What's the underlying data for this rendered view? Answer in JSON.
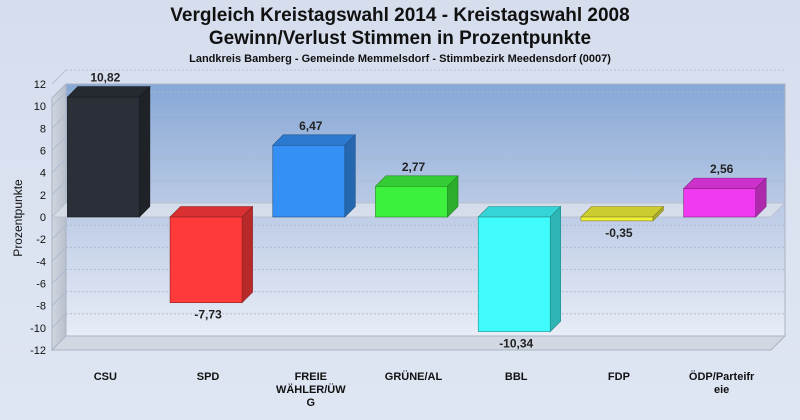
{
  "chart_data": {
    "type": "bar",
    "title": "Vergleich Kreistagswahl 2014 - Kreistagswahl 2008",
    "title2": "Gewinn/Verlust Stimmen in Prozentpunkte",
    "subtitle": "Landkreis Bamberg - Gemeinde Memmelsdorf - Stimmbezirk Meedensdorf (0007)",
    "ylabel": "Prozentpunkte",
    "xlabel": "",
    "ylim": [
      -12,
      12
    ],
    "yticks": [
      "12",
      "10",
      "8",
      "6",
      "4",
      "2",
      "0",
      "-2",
      "-4",
      "-6",
      "-8",
      "-10",
      "-12"
    ],
    "grid": true,
    "categories": [
      "CSU",
      "SPD",
      "FREIE WÄHLER/ÜWG",
      "GRÜNE/AL",
      "BBL",
      "FDP",
      "ÖDP/Parteifreie"
    ],
    "category_lines": [
      [
        "CSU"
      ],
      [
        "SPD"
      ],
      [
        "FREIE",
        "WÄHLER/ÜW",
        "G"
      ],
      [
        "GRÜNE/AL"
      ],
      [
        "BBL"
      ],
      [
        "FDP"
      ],
      [
        "ÖDP/Parteifr",
        "eie"
      ]
    ],
    "values": [
      10.82,
      -7.73,
      6.47,
      2.77,
      -10.34,
      -0.35,
      2.56
    ],
    "value_labels": [
      "10,82",
      "-7,73",
      "6,47",
      "2,77",
      "-10,34",
      "-0,35",
      "2,56"
    ],
    "colors": [
      "#2b3038",
      "#ff3a3a",
      "#3490f5",
      "#3df03d",
      "#3ffbfb",
      "#f0f03a",
      "#f03af0"
    ]
  }
}
